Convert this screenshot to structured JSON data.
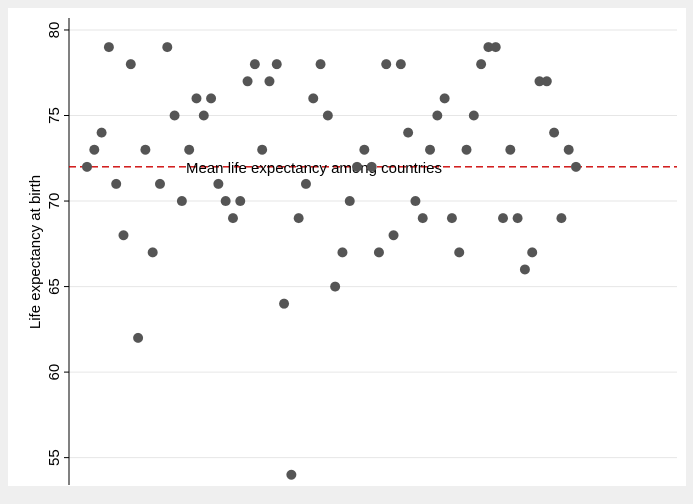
{
  "chart_data": {
    "type": "scatter",
    "y_label": "Life expectancy at birth",
    "values": [
      72,
      73,
      74,
      79,
      71,
      68,
      78,
      62,
      73,
      67,
      71,
      79,
      75,
      70,
      73,
      76,
      75,
      76,
      71,
      70,
      69,
      70,
      77,
      78,
      73,
      77,
      78,
      64,
      54,
      69,
      71,
      76,
      78,
      75,
      65,
      67,
      70,
      72,
      73,
      72,
      67,
      78,
      68,
      78,
      74,
      70,
      69,
      73,
      75,
      76,
      69,
      67,
      73,
      75,
      78,
      79,
      79,
      69,
      73,
      69,
      66,
      67,
      77,
      77,
      74,
      69,
      73,
      72
    ],
    "color": "#555555",
    "ylim": [
      53.4,
      80.7
    ],
    "yticks": [
      55,
      60,
      65,
      70,
      75,
      80
    ],
    "grid": true,
    "reference_line": {
      "value": 72,
      "label": "Mean life expectancy among countries",
      "color": "#cc0000"
    }
  }
}
